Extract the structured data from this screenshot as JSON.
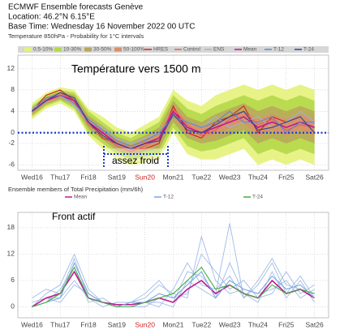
{
  "header": {
    "title": "ECMWF Ensemble forecasts Genève",
    "location": "Location: 46.2°N 6.15°E",
    "base_time": "Base Time: Wednesday 16 November 2022 00 UTC"
  },
  "chart_data": [
    {
      "type": "line",
      "title": "Temperature 850hPa - Probability for 1°C intervals",
      "annotations": [
        "Température vers 1500 m",
        "assez froid"
      ],
      "x": [
        0,
        0.5,
        1,
        1.5,
        2,
        2.5,
        3,
        3.5,
        4,
        4.5,
        5,
        5.5,
        6,
        6.5,
        7,
        7.5,
        8,
        8.5,
        9,
        9.5,
        10
      ],
      "xlim": [
        -0.5,
        10.5
      ],
      "xticks": [
        {
          "value": 0,
          "label": "Wed16"
        },
        {
          "value": 1,
          "label": "Thu17"
        },
        {
          "value": 2,
          "label": "Fri18"
        },
        {
          "value": 3,
          "label": "Sat19"
        },
        {
          "value": 4,
          "label": "Sun20",
          "color": "#d02020"
        },
        {
          "value": 5,
          "label": "Mon21"
        },
        {
          "value": 6,
          "label": "Tue22"
        },
        {
          "value": 7,
          "label": "Wed23"
        },
        {
          "value": 8,
          "label": "Thu24"
        },
        {
          "value": 9,
          "label": "Fri25"
        },
        {
          "value": 10,
          "label": "Sat26"
        }
      ],
      "ylim": [
        -7,
        14.5
      ],
      "yticks": [
        12,
        8,
        4,
        0,
        -2,
        -6
      ],
      "grid": true,
      "bands": [
        {
          "name": "0.5-10%",
          "color": "#e4f27a",
          "lower": [
            2.5,
            4.5,
            5.5,
            4,
            -0.5,
            -3,
            -5,
            -6,
            -5.5,
            -5,
            0,
            -4,
            -5,
            -5,
            -4,
            -3,
            -6,
            -5,
            -6,
            -5,
            -6
          ],
          "upper": [
            5.5,
            7.5,
            8.5,
            8,
            4.5,
            3,
            1,
            0,
            1.5,
            3,
            8,
            6,
            5,
            7,
            8,
            9,
            8,
            9,
            8,
            9,
            8
          ]
        },
        {
          "name": "10-30%",
          "color": "#b5d84a",
          "lower": [
            3,
            5,
            6,
            4.5,
            0,
            -2,
            -4,
            -5,
            -4.5,
            -4,
            1,
            -2.5,
            -3.5,
            -3,
            -2,
            -1,
            -4,
            -3,
            -4,
            -3,
            -4
          ],
          "upper": [
            5,
            7,
            8,
            7.5,
            4,
            2,
            0,
            -1,
            0.5,
            2,
            7,
            4.5,
            3.5,
            5,
            6,
            7,
            6,
            7,
            6,
            7,
            6
          ]
        },
        {
          "name": "30-50%",
          "color": "#b9a85a",
          "lower": [
            3.3,
            5.3,
            6.3,
            5,
            0.8,
            -1.3,
            -3.3,
            -4.3,
            -3.5,
            -3,
            2,
            -1,
            -2,
            -1.5,
            -0.5,
            0.5,
            -2,
            -1,
            -2,
            -1,
            -2
          ],
          "upper": [
            4.7,
            6.7,
            7.7,
            7,
            3.2,
            1.3,
            -0.7,
            -1.7,
            -0.5,
            1,
            6,
            3,
            2,
            3.5,
            4.5,
            5.5,
            4,
            5,
            4,
            5,
            4
          ]
        },
        {
          "name": "50-100%",
          "color": "#d9906a",
          "lower": [
            3.6,
            5.6,
            6.6,
            5.5,
            1.4,
            -0.6,
            -2.6,
            -3.6,
            -2.8,
            -2,
            3,
            0,
            -1,
            -0.2,
            0.8,
            1.8,
            -0.5,
            0.5,
            -0.5,
            0.5,
            -0.5
          ],
          "upper": [
            4.4,
            6.4,
            7.4,
            6.5,
            2.6,
            0.6,
            -1.4,
            -2.4,
            -1.2,
            0,
            5,
            2,
            1,
            2.2,
            3.2,
            4.2,
            2.5,
            3.5,
            2.5,
            3.5,
            2.5
          ]
        }
      ],
      "series": [
        {
          "name": "HRES",
          "color": "#d42020",
          "values": [
            4,
            7,
            8,
            6,
            2,
            -1,
            -2,
            -3,
            -3,
            -2,
            5,
            0,
            -1,
            2,
            3,
            5,
            0,
            3,
            2,
            3,
            null
          ]
        },
        {
          "name": "Control",
          "color": "#e0605a",
          "values": [
            4,
            6,
            7.5,
            6,
            1.5,
            -0.5,
            -2.5,
            -3.5,
            -2.5,
            -1,
            4.5,
            1.5,
            -0.5,
            0.5,
            2.5,
            4,
            1.5,
            2.5,
            0.5,
            1.5,
            1
          ]
        },
        {
          "name": "ENS",
          "color": "#9fb3d8",
          "values": [
            4.5,
            6,
            7,
            5,
            2,
            1,
            -1,
            -2,
            -1,
            0,
            3,
            2,
            1,
            3,
            1,
            2,
            3,
            1,
            2,
            4,
            2
          ]
        },
        {
          "name": "Mean",
          "color": "#c01890",
          "values": [
            4,
            6,
            7,
            6,
            2,
            0,
            -2,
            -3,
            -2,
            -1,
            4,
            1,
            0,
            1,
            2,
            3,
            1,
            2,
            1,
            2,
            1
          ]
        },
        {
          "name": "T-12",
          "color": "#5a8ad0",
          "values": [
            4,
            6.5,
            7,
            5.5,
            2.5,
            0.5,
            -1.5,
            -2.5,
            -1.5,
            0,
            3,
            2,
            1,
            2,
            4,
            2,
            2,
            3,
            0,
            2,
            2
          ]
        },
        {
          "name": "T-24",
          "color": "#2a4a90",
          "values": [
            4,
            6,
            7.5,
            6.5,
            2,
            -0.5,
            -2,
            -3,
            -2,
            -1.5,
            3.5,
            0.5,
            0,
            1.5,
            3,
            4,
            0.5,
            1,
            2,
            3,
            0
          ]
        }
      ]
    },
    {
      "type": "line",
      "title": "Ensemble members of Total Precipitation (mm/6h)",
      "annotations": [
        "Front actif"
      ],
      "x": [
        0,
        0.5,
        1,
        1.5,
        2,
        2.5,
        3,
        3.5,
        4,
        4.5,
        5,
        5.5,
        6,
        6.5,
        7,
        7.5,
        8,
        8.5,
        9,
        9.5,
        10
      ],
      "xlim": [
        -0.5,
        10.5
      ],
      "xticks": [
        {
          "value": 0,
          "label": "Wed16"
        },
        {
          "value": 1,
          "label": "Thu17"
        },
        {
          "value": 2,
          "label": "Fri18"
        },
        {
          "value": 3,
          "label": "Sat19"
        },
        {
          "value": 4,
          "label": "Sun20",
          "color": "#d02020"
        },
        {
          "value": 5,
          "label": "Mon21"
        },
        {
          "value": 6,
          "label": "Tue22"
        },
        {
          "value": 7,
          "label": "Wed23"
        },
        {
          "value": 8,
          "label": "Thu24"
        },
        {
          "value": 9,
          "label": "Fri25"
        },
        {
          "value": 10,
          "label": "Sat26"
        }
      ],
      "ylim": [
        -2.5,
        21.5
      ],
      "yticks": [
        18,
        12,
        6,
        0
      ],
      "grid": true,
      "members_color": "#8fb0e0",
      "members": [
        [
          0,
          3,
          5,
          12,
          4,
          1,
          0,
          0,
          1,
          1,
          0,
          6,
          4,
          2,
          10,
          3,
          1,
          8,
          2,
          6,
          1
        ],
        [
          1,
          2,
          2,
          6,
          2,
          0,
          1,
          1,
          2,
          5,
          3,
          2,
          16,
          6,
          3,
          4,
          3,
          4,
          6,
          2,
          4
        ],
        [
          0,
          1,
          4,
          9,
          1,
          2,
          0,
          0,
          0,
          2,
          1,
          8,
          7,
          3,
          19,
          2,
          5,
          10,
          3,
          7,
          2
        ],
        [
          0,
          2,
          1,
          5,
          3,
          1,
          0,
          1,
          3,
          6,
          2,
          3,
          12,
          8,
          4,
          6,
          2,
          3,
          8,
          3,
          5
        ],
        [
          2,
          4,
          3,
          11,
          2,
          1,
          0,
          0,
          1,
          0,
          4,
          10,
          5,
          4,
          7,
          2,
          6,
          11,
          5,
          4,
          3
        ]
      ],
      "series": [
        {
          "name": "Mean",
          "color": "#c01890",
          "values": [
            0,
            2,
            3,
            8,
            2,
            1,
            0.5,
            0.5,
            1,
            2,
            1,
            4,
            6,
            3,
            5,
            3,
            2,
            6,
            3,
            4,
            2
          ]
        },
        {
          "name": "T-12",
          "color": "#7aa6e0",
          "values": [
            0,
            1,
            2,
            10,
            3,
            1,
            0,
            1,
            1,
            3,
            2,
            5,
            8,
            2,
            6,
            4,
            3,
            7,
            4,
            5,
            2
          ]
        },
        {
          "name": "T-24",
          "color": "#40b040",
          "values": [
            0,
            1,
            3,
            9,
            2,
            1,
            0,
            0,
            1,
            2,
            3,
            6,
            9,
            4,
            5,
            3,
            2,
            5,
            3,
            4,
            3
          ]
        }
      ]
    }
  ]
}
